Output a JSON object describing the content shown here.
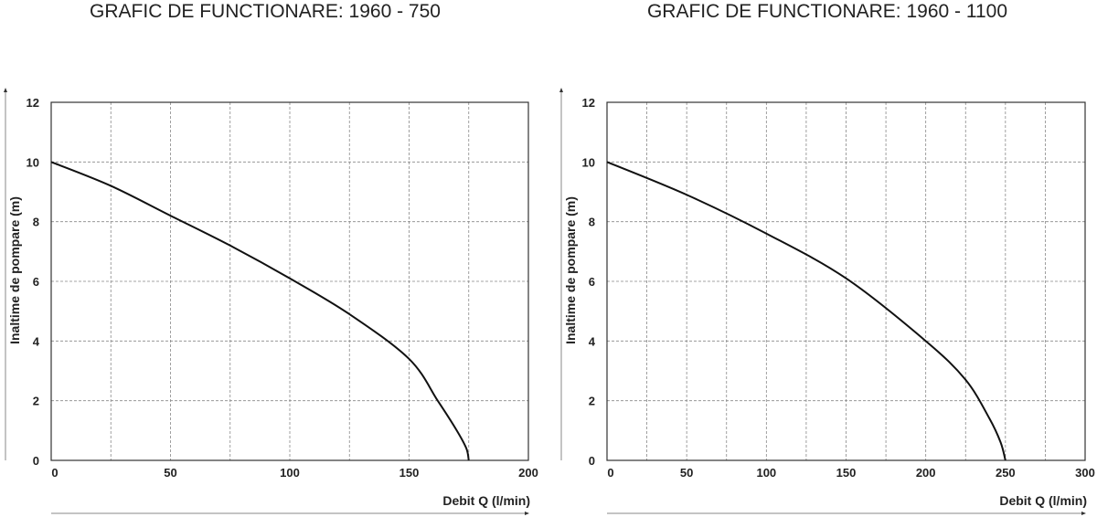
{
  "chart_data": [
    {
      "type": "line",
      "title": "GRAFIC DE FUNCTIONARE: 1960 - 750",
      "xlabel": "Debit   Q (l/min)",
      "ylabel": "Inaltime de pompare (m)",
      "xlim": [
        0,
        200
      ],
      "ylim": [
        0,
        12
      ],
      "xticks": [
        0,
        50,
        100,
        150,
        200
      ],
      "yticks": [
        0,
        2,
        4,
        6,
        8,
        10,
        12
      ],
      "grid": true,
      "series": [
        {
          "x": [
            0,
            25,
            50,
            75,
            100,
            125,
            150,
            162,
            170,
            174,
            175
          ],
          "y": [
            10,
            9.2,
            8.2,
            7.2,
            6.1,
            4.9,
            3.4,
            2.0,
            1.0,
            0.4,
            0
          ]
        }
      ]
    },
    {
      "type": "line",
      "title": "GRAFIC DE FUNCTIONARE: 1960 - 1100",
      "xlabel": "Debit   Q (l/min)",
      "ylabel": "Inaltime de pompare (m)",
      "xlim": [
        0,
        300
      ],
      "ylim": [
        0,
        12
      ],
      "xticks": [
        0,
        50,
        100,
        150,
        200,
        250,
        300
      ],
      "yticks": [
        0,
        2,
        4,
        6,
        8,
        10,
        12
      ],
      "grid": true,
      "series": [
        {
          "x": [
            0,
            50,
            100,
            150,
            200,
            225,
            240,
            247,
            250
          ],
          "y": [
            10,
            8.9,
            7.6,
            6.1,
            4.0,
            2.7,
            1.4,
            0.6,
            0
          ]
        }
      ]
    }
  ]
}
